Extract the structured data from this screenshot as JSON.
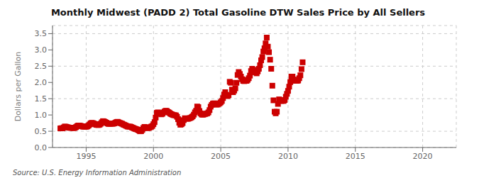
{
  "chart_data": {
    "type": "scatter",
    "title": "Monthly Midwest (PADD 2) Total Gasoline DTW Sales Price by All Sellers",
    "y_label": "Dollars per Gallon",
    "annotations": [
      "Source: U.S. Energy Information Administration"
    ],
    "color": "#cc0000",
    "marker": "square",
    "grid": true,
    "xlim": [
      1992.5,
      2022.5
    ],
    "ylim": [
      0.0,
      3.75
    ],
    "xticks": [
      1995,
      2000,
      2005,
      2010,
      2015,
      2020
    ],
    "yticks": [
      {
        "value": 0.0,
        "label": "0.0"
      },
      0.5,
      {
        "value": 1.0,
        "label": "1.0"
      },
      1.5,
      {
        "value": 2.0,
        "label": "2.0"
      },
      2.5,
      {
        "value": 3.0,
        "label": "3.0"
      },
      3.5
    ],
    "x": [
      1993.083,
      1993.167,
      1993.25,
      1993.333,
      1993.417,
      1993.5,
      1993.583,
      1993.667,
      1993.75,
      1993.833,
      1993.917,
      1994.0,
      1994.083,
      1994.167,
      1994.25,
      1994.333,
      1994.417,
      1994.5,
      1994.583,
      1994.667,
      1994.75,
      1994.833,
      1994.917,
      1995.0,
      1995.083,
      1995.167,
      1995.25,
      1995.333,
      1995.417,
      1995.5,
      1995.583,
      1995.667,
      1995.75,
      1995.833,
      1995.917,
      1996.0,
      1996.083,
      1996.167,
      1996.25,
      1996.333,
      1996.417,
      1996.5,
      1996.583,
      1996.667,
      1996.75,
      1996.833,
      1996.917,
      1997.0,
      1997.083,
      1997.167,
      1997.25,
      1997.333,
      1997.417,
      1997.5,
      1997.583,
      1997.667,
      1997.75,
      1997.833,
      1997.917,
      1998.0,
      1998.083,
      1998.167,
      1998.25,
      1998.333,
      1998.417,
      1998.5,
      1998.583,
      1998.667,
      1998.75,
      1998.833,
      1998.917,
      1999.0,
      1999.083,
      1999.167,
      1999.25,
      1999.333,
      1999.417,
      1999.5,
      1999.583,
      1999.667,
      1999.75,
      1999.833,
      1999.917,
      2000.0,
      2000.083,
      2000.167,
      2000.25,
      2000.333,
      2000.417,
      2000.5,
      2000.583,
      2000.667,
      2000.75,
      2000.833,
      2000.917,
      2001.0,
      2001.083,
      2001.167,
      2001.25,
      2001.333,
      2001.417,
      2001.5,
      2001.583,
      2001.667,
      2001.75,
      2001.833,
      2001.917,
      2002.0,
      2002.083,
      2002.167,
      2002.25,
      2002.333,
      2002.417,
      2002.5,
      2002.583,
      2002.667,
      2002.75,
      2002.833,
      2002.917,
      2003.0,
      2003.083,
      2003.167,
      2003.25,
      2003.333,
      2003.417,
      2003.5,
      2003.583,
      2003.667,
      2003.75,
      2003.833,
      2003.917,
      2004.0,
      2004.083,
      2004.167,
      2004.25,
      2004.333,
      2004.417,
      2004.5,
      2004.583,
      2004.667,
      2004.75,
      2004.833,
      2004.917,
      2005.0,
      2005.083,
      2005.167,
      2005.25,
      2005.333,
      2005.417,
      2005.5,
      2005.583,
      2005.667,
      2005.75,
      2005.833,
      2005.917,
      2006.0,
      2006.083,
      2006.167,
      2006.25,
      2006.333,
      2006.417,
      2006.5,
      2006.583,
      2006.667,
      2006.75,
      2006.833,
      2006.917,
      2007.0,
      2007.083,
      2007.167,
      2007.25,
      2007.333,
      2007.417,
      2007.5,
      2007.583,
      2007.667,
      2007.75,
      2007.833,
      2007.917,
      2008.0,
      2008.083,
      2008.167,
      2008.25,
      2008.333,
      2008.417,
      2008.5,
      2008.583,
      2008.667,
      2008.75,
      2008.833,
      2008.917,
      2009.0,
      2009.083,
      2009.167,
      2009.25,
      2009.333,
      2009.417,
      2009.5,
      2009.583,
      2009.667,
      2009.75,
      2009.833,
      2009.917,
      2010.0,
      2010.083,
      2010.167,
      2010.25,
      2010.333,
      2010.417,
      2010.5,
      2010.583,
      2010.667,
      2010.75,
      2010.833,
      2010.917,
      2011.0,
      2011.083
    ],
    "values": [
      0.587,
      0.594,
      0.591,
      0.617,
      0.645,
      0.637,
      0.628,
      0.618,
      0.608,
      0.603,
      0.608,
      0.6,
      0.597,
      0.609,
      0.629,
      0.658,
      0.676,
      0.673,
      0.668,
      0.654,
      0.642,
      0.641,
      0.641,
      0.637,
      0.65,
      0.67,
      0.705,
      0.742,
      0.758,
      0.748,
      0.735,
      0.718,
      0.698,
      0.693,
      0.691,
      0.703,
      0.731,
      0.775,
      0.81,
      0.8,
      0.782,
      0.762,
      0.738,
      0.726,
      0.726,
      0.731,
      0.731,
      0.73,
      0.74,
      0.76,
      0.78,
      0.79,
      0.773,
      0.755,
      0.745,
      0.731,
      0.71,
      0.695,
      0.68,
      0.661,
      0.645,
      0.641,
      0.643,
      0.634,
      0.614,
      0.601,
      0.583,
      0.571,
      0.56,
      0.547,
      0.523,
      0.499,
      0.502,
      0.54,
      0.598,
      0.633,
      0.62,
      0.605,
      0.594,
      0.606,
      0.621,
      0.64,
      0.663,
      0.717,
      0.78,
      0.92,
      1.065,
      1.08,
      1.058,
      1.042,
      1.02,
      1.038,
      1.079,
      1.108,
      1.13,
      1.121,
      1.09,
      1.073,
      1.042,
      1.025,
      1.009,
      0.995,
      0.993,
      0.987,
      0.945,
      0.87,
      0.762,
      0.7,
      0.716,
      0.75,
      0.841,
      0.9,
      0.89,
      0.882,
      0.883,
      0.899,
      0.91,
      0.93,
      0.96,
      1.01,
      1.08,
      1.13,
      1.26,
      1.24,
      1.122,
      1.05,
      1.015,
      1.008,
      1.018,
      1.03,
      1.04,
      1.05,
      1.08,
      1.15,
      1.255,
      1.31,
      1.35,
      1.36,
      1.34,
      1.32,
      1.32,
      1.34,
      1.36,
      1.39,
      1.43,
      1.52,
      1.63,
      1.7,
      1.62,
      1.58,
      1.61,
      2.02,
      1.99,
      1.78,
      1.7,
      1.75,
      1.82,
      1.99,
      2.23,
      2.32,
      2.26,
      2.18,
      2.1,
      2.05,
      2.04,
      2.06,
      2.05,
      2.08,
      2.13,
      2.21,
      2.35,
      2.42,
      2.39,
      2.36,
      2.31,
      2.28,
      2.34,
      2.42,
      2.53,
      2.68,
      2.78,
      2.95,
      3.05,
      3.2,
      3.38,
      3.1,
      2.93,
      2.7,
      2.42,
      1.9,
      1.45,
      1.1,
      1.05,
      1.1,
      1.34,
      1.48,
      1.45,
      1.43,
      1.44,
      1.43,
      1.46,
      1.56,
      1.65,
      1.74,
      1.87,
      2.01,
      2.18,
      2.18,
      2.09,
      2.05,
      2.06,
      2.05,
      2.06,
      2.13,
      2.22,
      2.41,
      2.62
    ]
  }
}
